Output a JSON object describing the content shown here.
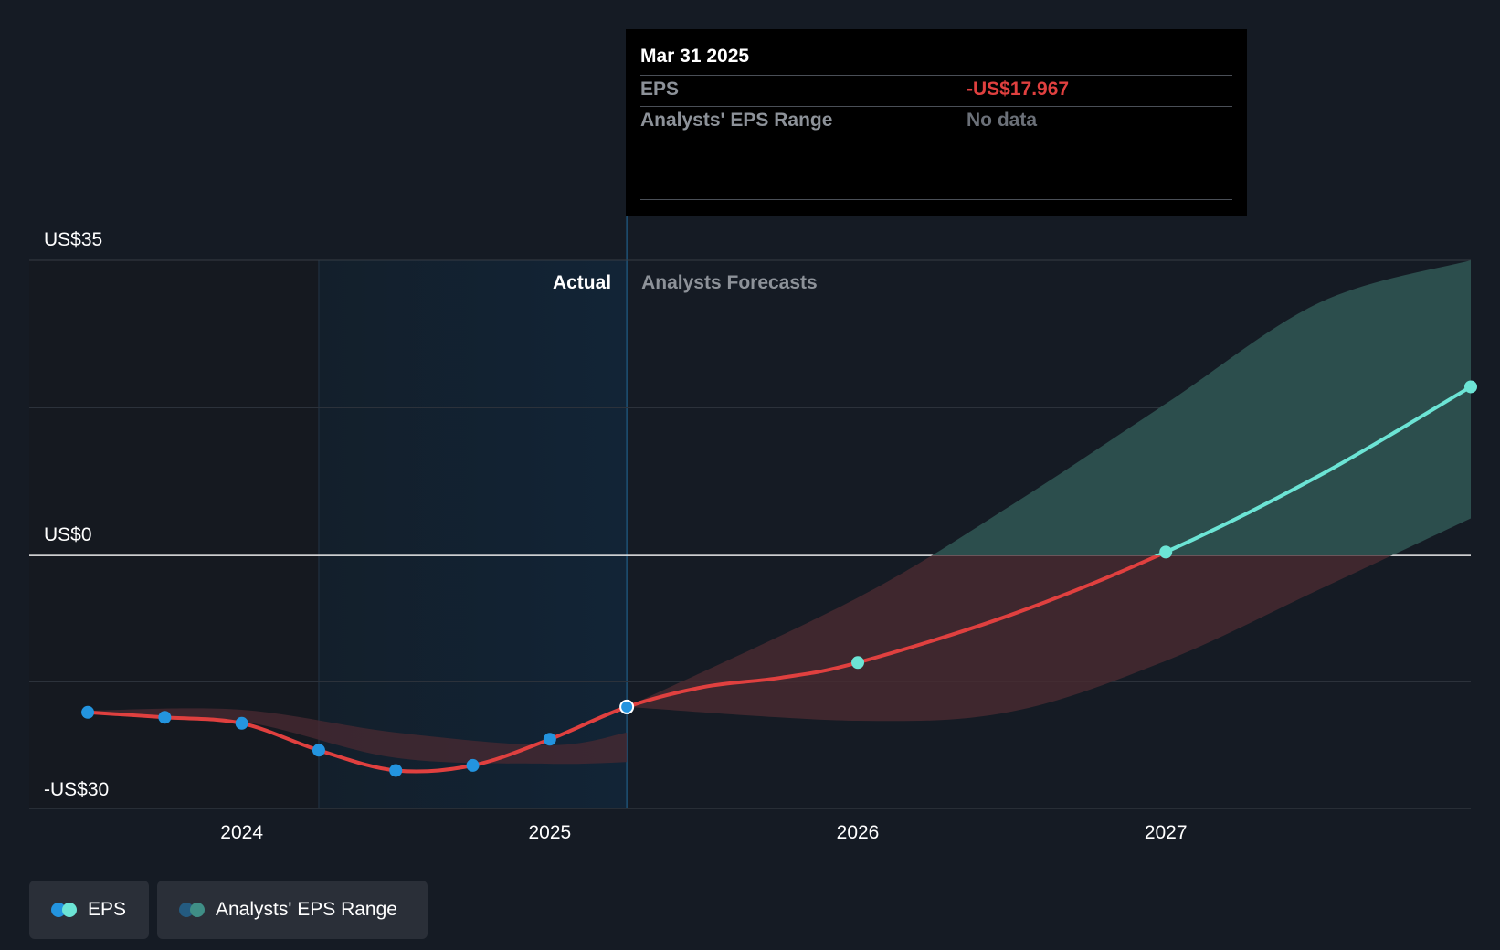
{
  "tooltip": {
    "date": "Mar 31 2025",
    "eps_label": "EPS",
    "eps_value": "-US$17.967",
    "range_label": "Analysts' EPS Range",
    "range_value": "No data"
  },
  "legend": {
    "eps_label": "EPS",
    "range_label": "Analysts' EPS Range"
  },
  "colors": {
    "background": "#151b24",
    "eps_actual_point": "#2394df",
    "eps_forecast_point": "#6ce4d5",
    "negative_line": "#e0403f",
    "positive_line": "#6ce4d5",
    "negative_band": "#4a2a31",
    "positive_band": "#2c4e4d",
    "actual_shade": "#122436"
  },
  "chart_data": {
    "type": "line",
    "y_tick_labels": [
      "US$35",
      "US$0",
      "-US$30"
    ],
    "y_ticks": [
      35,
      0,
      -30
    ],
    "ylim": [
      -30,
      35
    ],
    "x_tick_labels": [
      "2024",
      "2025",
      "2026",
      "2027"
    ],
    "x_ticks": [
      2024,
      2025,
      2026,
      2027
    ],
    "xlim": [
      2023.31,
      2027.99
    ],
    "region_labels": {
      "actual": "Actual",
      "forecast": "Analysts Forecasts"
    },
    "actual_region_start": 2024.25,
    "forecast_start": 2025.25,
    "series": [
      {
        "name": "EPS",
        "points": [
          {
            "x": 2023.5,
            "y": -18.6
          },
          {
            "x": 2023.75,
            "y": -19.2
          },
          {
            "x": 2024.0,
            "y": -19.9
          },
          {
            "x": 2024.25,
            "y": -23.1
          },
          {
            "x": 2024.5,
            "y": -25.5
          },
          {
            "x": 2024.75,
            "y": -24.9
          },
          {
            "x": 2025.0,
            "y": -21.8
          },
          {
            "x": 2025.25,
            "y": -17.967
          }
        ]
      },
      {
        "name": "EPS forecast",
        "points": [
          {
            "x": 2025.25,
            "y": -17.967
          },
          {
            "x": 2025.5,
            "y": -15.6
          },
          {
            "x": 2025.75,
            "y": -14.5
          },
          {
            "x": 2026.0,
            "y": -12.7
          },
          {
            "x": 2026.5,
            "y": -7.0
          },
          {
            "x": 2027.0,
            "y": 0.4
          },
          {
            "x": 2027.5,
            "y": 9.5
          },
          {
            "x": 2027.99,
            "y": 20.0
          }
        ]
      }
    ],
    "actual_range_band": [
      {
        "x": 2023.5,
        "upper": -18.4,
        "lower": -18.8
      },
      {
        "x": 2024.0,
        "upper": -18.3,
        "lower": -19.7
      },
      {
        "x": 2024.5,
        "upper": -21.0,
        "lower": -24.0
      },
      {
        "x": 2025.0,
        "upper": -22.5,
        "lower": -24.7
      },
      {
        "x": 2025.25,
        "upper": -21.0,
        "lower": -24.5
      }
    ],
    "forecast_range_band": [
      {
        "x": 2025.25,
        "upper": -17.967,
        "lower": -17.967
      },
      {
        "x": 2026.0,
        "upper": -5.0,
        "lower": -19.6
      },
      {
        "x": 2026.5,
        "upper": 6.0,
        "lower": -18.5
      },
      {
        "x": 2027.0,
        "upper": 18.0,
        "lower": -12.5
      },
      {
        "x": 2027.5,
        "upper": 30.0,
        "lower": -4.0
      },
      {
        "x": 2027.99,
        "upper": 35.0,
        "lower": 4.4
      }
    ]
  }
}
